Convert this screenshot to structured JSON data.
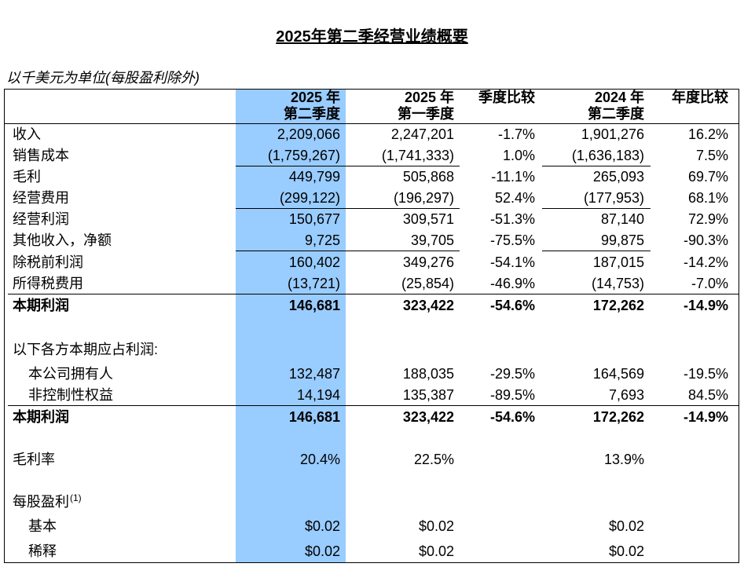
{
  "title": "2025年第二季经营业绩概要",
  "subtitle": "以千美元为单位(每股盈利除外)",
  "table": {
    "header": [
      [
        "2025 年",
        "第二季度"
      ],
      [
        "2025 年",
        "第一季度"
      ],
      [
        "季度比较"
      ],
      [
        "2024 年",
        "第二季度"
      ],
      [
        "年度比较"
      ]
    ],
    "rows": [
      {
        "label": "收入",
        "cells": [
          "2,209,066",
          "2,247,201",
          "-1.7%",
          "1,901,276",
          "16.2%"
        ]
      },
      {
        "label": "销售成本",
        "cells": [
          "(1,759,267)",
          "(1,741,333)",
          "1.0%",
          "(1,636,183)",
          "7.5%"
        ]
      },
      {
        "label": "毛利",
        "cells": [
          "449,799",
          "505,868",
          "-11.1%",
          "265,093",
          "69.7%"
        ]
      },
      {
        "label": "经营费用",
        "cells": [
          "(299,122)",
          "(196,297)",
          "52.4%",
          "(177,953)",
          "68.1%"
        ]
      },
      {
        "label": "经营利润",
        "cells": [
          "150,677",
          "309,571",
          "-51.3%",
          "87,140",
          "72.9%"
        ]
      },
      {
        "label": "其他收入，净额",
        "cells": [
          "9,725",
          "39,705",
          "-75.5%",
          "99,875",
          "-90.3%"
        ]
      },
      {
        "label": "除税前利润",
        "cells": [
          "160,402",
          "349,276",
          "-54.1%",
          "187,015",
          "-14.2%"
        ]
      },
      {
        "label": "所得税费用",
        "cells": [
          "(13,721)",
          "(25,854)",
          "-46.9%",
          "(14,753)",
          "-7.0%"
        ]
      },
      {
        "label": "本期利润",
        "cells": [
          "146,681",
          "323,422",
          "-54.6%",
          "172,262",
          "-14.9%"
        ]
      },
      {
        "label": "以下各方本期应占利润:"
      },
      {
        "label": "本公司拥有人",
        "cells": [
          "132,487",
          "188,035",
          "-29.5%",
          "164,569",
          "-19.5%"
        ]
      },
      {
        "label": "非控制性权益",
        "cells": [
          "14,194",
          "135,387",
          "-89.5%",
          "7,693",
          "84.5%"
        ]
      },
      {
        "label": "本期利润",
        "cells": [
          "146,681",
          "323,422",
          "-54.6%",
          "172,262",
          "-14.9%"
        ]
      },
      {
        "label": "毛利率",
        "cells": {
          "0": "20.4%",
          "1": "22.5%",
          "3": "13.9%"
        }
      },
      {
        "label": "每股盈利",
        "note": "(1)"
      },
      {
        "label": "基本",
        "cells": {
          "0": "$0.02",
          "1": "$0.02",
          "3": "$0.02"
        }
      },
      {
        "label": "稀释",
        "cells": {
          "0": "$0.02",
          "1": "$0.02",
          "3": "$0.02"
        }
      }
    ]
  }
}
